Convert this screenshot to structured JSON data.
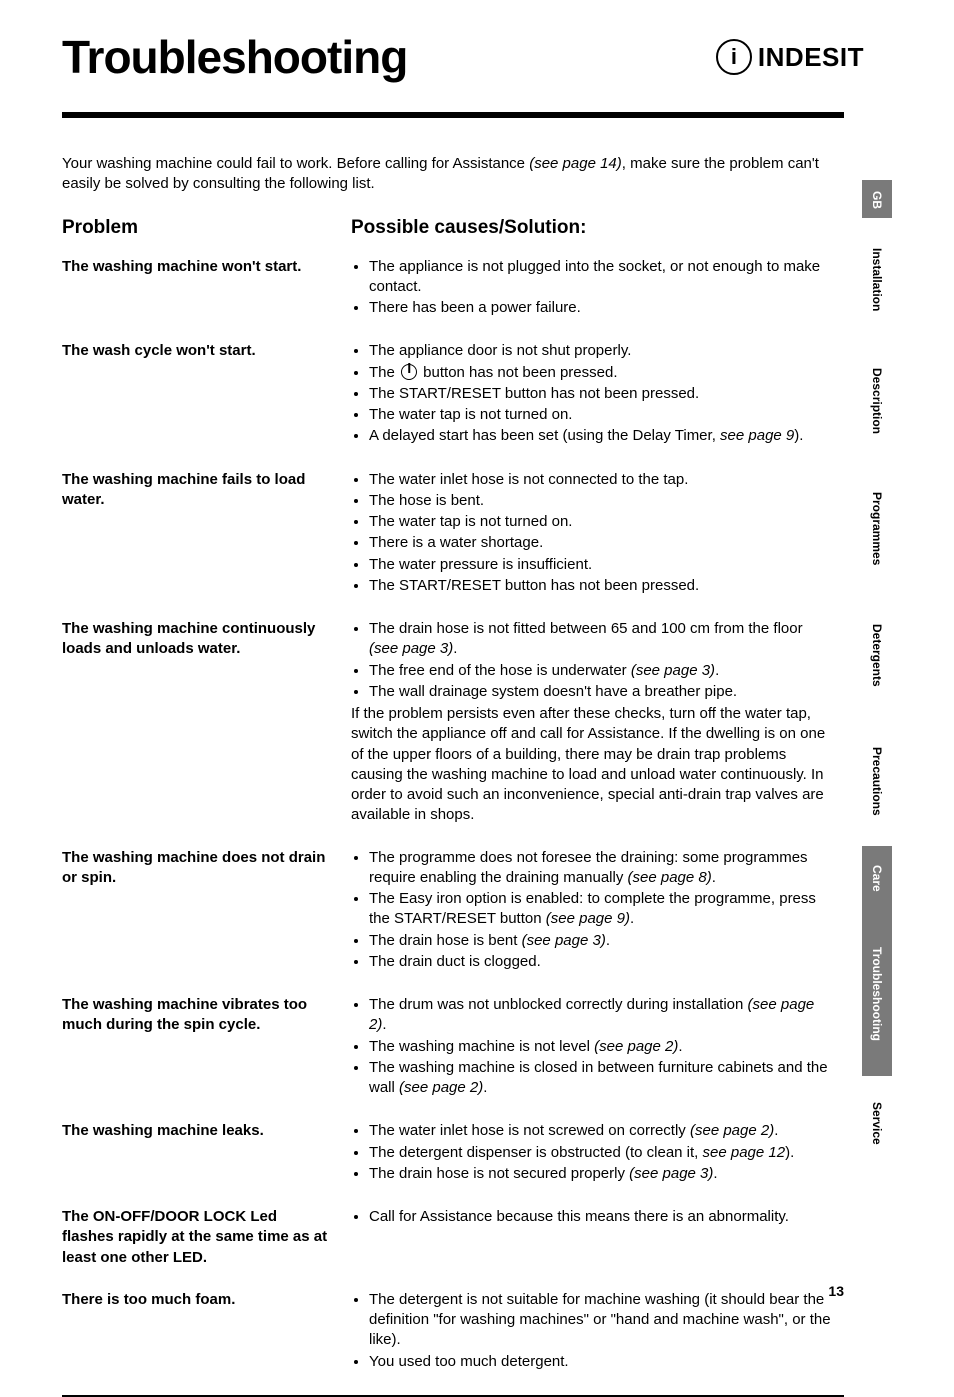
{
  "title": "Troubleshooting",
  "logo_text": "INDESIT",
  "intro_a": "Your washing machine could fail to work. Before calling for Assistance ",
  "intro_ref": "(see page 14)",
  "intro_b": ", make sure the problem can't easily be solved by consulting the following list.",
  "col_problem": "Problem",
  "col_solution": "Possible causes/Solution:",
  "page_number": "13",
  "tabs": [
    {
      "label": "GB",
      "dark": true
    },
    {
      "label": "Installation",
      "dark": false
    },
    {
      "label": "Description",
      "dark": false
    },
    {
      "label": "Programmes",
      "dark": false
    },
    {
      "label": "Detergents",
      "dark": false
    },
    {
      "label": "Precautions",
      "dark": false
    },
    {
      "label": "Care",
      "dark": true
    },
    {
      "label": "Troubleshooting",
      "dark": true
    },
    {
      "label": "Service",
      "dark": false
    }
  ],
  "rows": [
    {
      "problem": "The washing machine won't start.",
      "solutions": [
        {
          "text": "The appliance is not plugged into the socket, or not enough to make contact."
        },
        {
          "text": "There has been a power failure."
        }
      ]
    },
    {
      "problem": "The wash cycle won't start.",
      "solutions": [
        {
          "text": "The appliance door is not shut properly."
        },
        {
          "text_a": "The ",
          "power_icon": true,
          "text_b": " button has not been pressed."
        },
        {
          "text": "The START/RESET button has not been pressed."
        },
        {
          "text": "The water tap is not turned on."
        },
        {
          "text_a": "A delayed start has been set (using the Delay Timer, ",
          "ref": "see page 9",
          "text_b": ")."
        }
      ]
    },
    {
      "problem": "The washing machine fails to load water.",
      "solutions": [
        {
          "text": "The water inlet hose is not connected to the tap."
        },
        {
          "text": "The hose is bent."
        },
        {
          "text": "The water tap is not turned on."
        },
        {
          "text": "There is a water shortage."
        },
        {
          "text": "The water pressure is insufficient."
        },
        {
          "text": "The START/RESET button has not been pressed."
        }
      ]
    },
    {
      "problem": "The washing machine continuously loads and unloads water.",
      "solutions": [
        {
          "text_a": "The drain hose is not fitted between 65 and 100 cm from the floor ",
          "ref": "(see page 3)",
          "text_b": "."
        },
        {
          "text_a": "The free end of the hose is underwater ",
          "ref": "(see page 3)",
          "text_b": "."
        },
        {
          "text": "The wall drainage system doesn't have a breather pipe."
        }
      ],
      "note": "If the problem persists even after these checks, turn off the water tap, switch the appliance off and call for Assistance. If the dwelling is on one of the upper floors of a building, there may be drain trap problems causing the washing machine to load and unload water continuously. In order to avoid such an inconvenience, special anti-drain trap valves are available in shops."
    },
    {
      "problem": "The washing machine does not drain or spin.",
      "solutions": [
        {
          "text_a": "The programme does not foresee the draining: some programmes require enabling the draining manually ",
          "ref": "(see page 8)",
          "text_b": "."
        },
        {
          "text_a": "The Easy iron option is enabled: to complete the programme, press the START/RESET button ",
          "ref": "(see page 9)",
          "text_b": "."
        },
        {
          "text_a": "The drain hose is bent ",
          "ref": "(see page 3)",
          "text_b": "."
        },
        {
          "text": "The drain duct is clogged."
        }
      ]
    },
    {
      "problem": "The washing machine vibrates too much during the spin cycle.",
      "solutions": [
        {
          "text_a": "The drum was not unblocked correctly during installation ",
          "ref": "(see page 2)",
          "text_b": "."
        },
        {
          "text_a": "The washing machine is not level ",
          "ref": "(see page 2)",
          "text_b": "."
        },
        {
          "text_a": "The washing machine is closed in between furniture cabinets and the wall ",
          "ref": "(see page 2)",
          "text_b": "."
        }
      ]
    },
    {
      "problem": "The washing machine leaks.",
      "solutions": [
        {
          "text_a": "The water inlet hose is not screwed on correctly ",
          "ref": "(see page 2)",
          "text_b": "."
        },
        {
          "text_a": "The detergent dispenser is obstructed (to clean it, ",
          "ref": "see page 12",
          "text_b": ")."
        },
        {
          "text_a": "The drain hose is not secured properly ",
          "ref": "(see page 3)",
          "text_b": "."
        }
      ]
    },
    {
      "problem": "The ON-OFF/DOOR LOCK Led flashes rapidly at the same time as at least one other LED.",
      "solutions": [
        {
          "text": "Call for Assistance because this means there is an abnormality."
        }
      ]
    },
    {
      "problem": "There is too much foam.",
      "solutions": [
        {
          "text": "The detergent is not suitable for machine washing (it should bear the definition \"for washing machines\" or \"hand and machine wash\", or the like)."
        },
        {
          "text": "You used too much detergent."
        }
      ]
    }
  ]
}
